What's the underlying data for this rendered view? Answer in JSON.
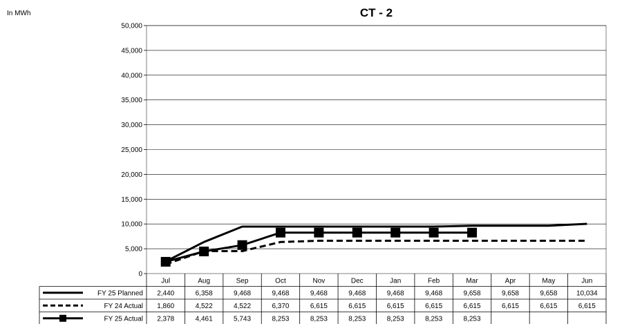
{
  "chart_data": {
    "type": "line",
    "title": "CT - 2",
    "unit_label": "In MWh",
    "ylim": [
      0,
      50000
    ],
    "y_ticks": [
      "0",
      "5,000",
      "10,000",
      "15,000",
      "20,000",
      "25,000",
      "30,000",
      "35,000",
      "40,000",
      "45,000",
      "50,000"
    ],
    "y_tick_values": [
      0,
      5000,
      10000,
      15000,
      20000,
      25000,
      30000,
      35000,
      40000,
      45000,
      50000
    ],
    "categories": [
      "Jul",
      "Aug",
      "Sep",
      "Oct",
      "Nov",
      "Dec",
      "Jan",
      "Feb",
      "Mar",
      "Apr",
      "May",
      "Jun"
    ],
    "grid": "horizontal",
    "legend": "data-table",
    "series": [
      {
        "name": "FY 25 Planned",
        "style": "solid",
        "values": [
          2440,
          6358,
          9468,
          9468,
          9468,
          9468,
          9468,
          9468,
          9658,
          9658,
          9658,
          10034
        ],
        "labels": [
          "2,440",
          "6,358",
          "9,468",
          "9,468",
          "9,468",
          "9,468",
          "9,468",
          "9,468",
          "9,658",
          "9,658",
          "9,658",
          "10,034"
        ]
      },
      {
        "name": "FY 24 Actual",
        "style": "dashed",
        "values": [
          1860,
          4522,
          4522,
          6370,
          6615,
          6615,
          6615,
          6615,
          6615,
          6615,
          6615,
          6615
        ],
        "labels": [
          "1,860",
          "4,522",
          "4,522",
          "6,370",
          "6,615",
          "6,615",
          "6,615",
          "6,615",
          "6,615",
          "6,615",
          "6,615",
          "6,615"
        ]
      },
      {
        "name": "FY 25 Actual",
        "style": "solid-square-markers",
        "values": [
          2378,
          4461,
          5743,
          8253,
          8253,
          8253,
          8253,
          8253,
          8253,
          null,
          null,
          null
        ],
        "labels": [
          "2,378",
          "4,461",
          "5,743",
          "8,253",
          "8,253",
          "8,253",
          "8,253",
          "8,253",
          "8,253",
          "",
          "",
          ""
        ]
      }
    ]
  }
}
